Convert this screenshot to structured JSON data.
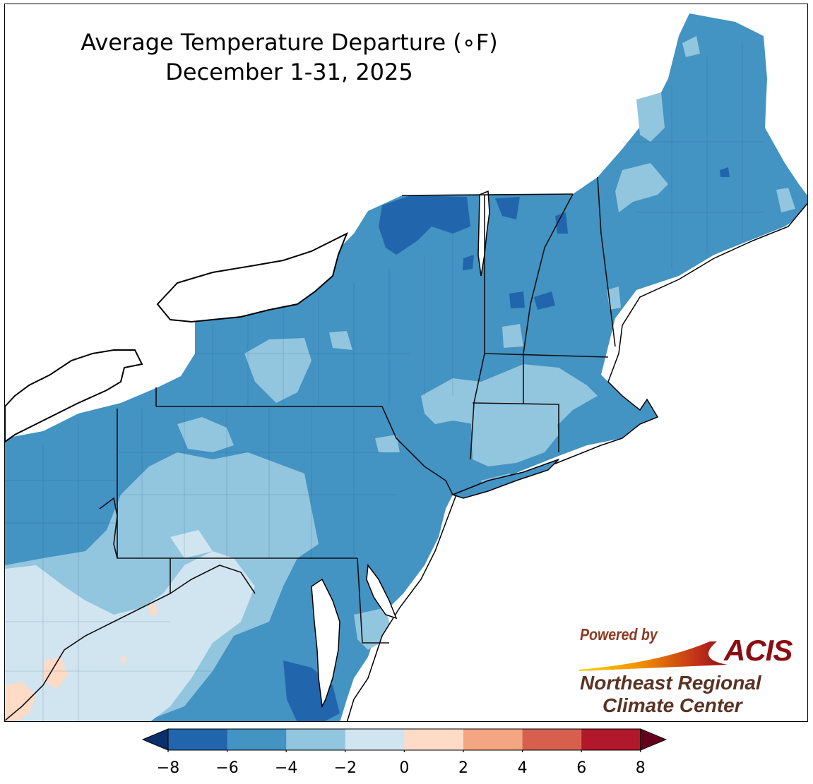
{
  "title": {
    "line1": "Average Temperature Departure (∘F)",
    "line2": "December 1-31, 2025"
  },
  "legend": {
    "ticks": [
      "−8",
      "−6",
      "−4",
      "−2",
      "0",
      "2",
      "4",
      "6",
      "8"
    ],
    "bins": [
      {
        "range": "< -8",
        "color": "#0b2f6b"
      },
      {
        "range": "-8 to -6",
        "color": "#2166ac"
      },
      {
        "range": "-6 to -4",
        "color": "#4393c3"
      },
      {
        "range": "-4 to -2",
        "color": "#92c5de"
      },
      {
        "range": "-2 to 0",
        "color": "#d1e5f0"
      },
      {
        "range": "0 to 2",
        "color": "#fddbc7"
      },
      {
        "range": "2 to 4",
        "color": "#f4a582"
      },
      {
        "range": "4 to 6",
        "color": "#d6604d"
      },
      {
        "range": "6 to 8",
        "color": "#b2182b"
      },
      {
        "range": "> 8",
        "color": "#67001f"
      }
    ]
  },
  "logo": {
    "powered_by": "Powered by",
    "acis": "ACIS",
    "org_line1": "Northeast Regional",
    "org_line2": "Climate Center"
  },
  "map": {
    "dominant_value_range": "-6 to -4",
    "colors": {
      "water": "#ffffff",
      "border": "#000000",
      "county_line": "#555555"
    }
  }
}
